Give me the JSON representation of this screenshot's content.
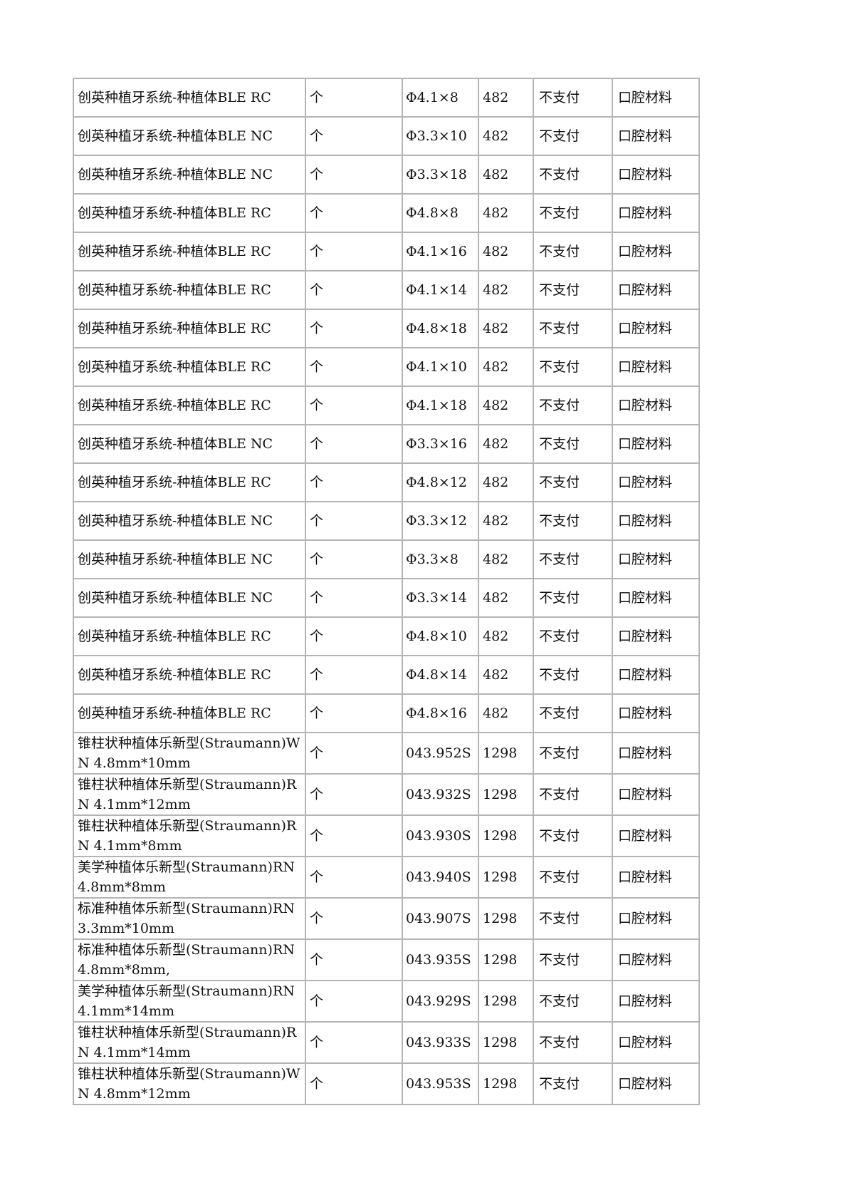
{
  "table": {
    "rows": [
      {
        "name": "创英种植牙系统-种植体BLE RC",
        "unit": "个",
        "spec": "Φ4.1×8",
        "price": "482",
        "payment": "不支付",
        "category": "口腔材料"
      },
      {
        "name": "创英种植牙系统-种植体BLE NC",
        "unit": "个",
        "spec": "Φ3.3×10",
        "price": "482",
        "payment": "不支付",
        "category": "口腔材料"
      },
      {
        "name": "创英种植牙系统-种植体BLE NC",
        "unit": "个",
        "spec": "Φ3.3×18",
        "price": "482",
        "payment": "不支付",
        "category": "口腔材料"
      },
      {
        "name": "创英种植牙系统-种植体BLE RC",
        "unit": "个",
        "spec": "Φ4.8×8",
        "price": "482",
        "payment": "不支付",
        "category": "口腔材料"
      },
      {
        "name": "创英种植牙系统-种植体BLE RC",
        "unit": "个",
        "spec": "Φ4.1×16",
        "price": "482",
        "payment": "不支付",
        "category": "口腔材料"
      },
      {
        "name": "创英种植牙系统-种植体BLE RC",
        "unit": "个",
        "spec": "Φ4.1×14",
        "price": "482",
        "payment": "不支付",
        "category": "口腔材料"
      },
      {
        "name": "创英种植牙系统-种植体BLE RC",
        "unit": "个",
        "spec": "Φ4.8×18",
        "price": "482",
        "payment": "不支付",
        "category": "口腔材料"
      },
      {
        "name": "创英种植牙系统-种植体BLE RC",
        "unit": "个",
        "spec": "Φ4.1×10",
        "price": "482",
        "payment": "不支付",
        "category": "口腔材料"
      },
      {
        "name": "创英种植牙系统-种植体BLE RC",
        "unit": "个",
        "spec": "Φ4.1×18",
        "price": "482",
        "payment": "不支付",
        "category": "口腔材料"
      },
      {
        "name": "创英种植牙系统-种植体BLE NC",
        "unit": "个",
        "spec": "Φ3.3×16",
        "price": "482",
        "payment": "不支付",
        "category": "口腔材料"
      },
      {
        "name": "创英种植牙系统-种植体BLE RC",
        "unit": "个",
        "spec": "Φ4.8×12",
        "price": "482",
        "payment": "不支付",
        "category": "口腔材料"
      },
      {
        "name": "创英种植牙系统-种植体BLE NC",
        "unit": "个",
        "spec": "Φ3.3×12",
        "price": "482",
        "payment": "不支付",
        "category": "口腔材料"
      },
      {
        "name": "创英种植牙系统-种植体BLE NC",
        "unit": "个",
        "spec": "Φ3.3×8",
        "price": "482",
        "payment": "不支付",
        "category": "口腔材料"
      },
      {
        "name": "创英种植牙系统-种植体BLE NC",
        "unit": "个",
        "spec": "Φ3.3×14",
        "price": "482",
        "payment": "不支付",
        "category": "口腔材料"
      },
      {
        "name": "创英种植牙系统-种植体BLE RC",
        "unit": "个",
        "spec": "Φ4.8×10",
        "price": "482",
        "payment": "不支付",
        "category": "口腔材料"
      },
      {
        "name": "创英种植牙系统-种植体BLE RC",
        "unit": "个",
        "spec": "Φ4.8×14",
        "price": "482",
        "payment": "不支付",
        "category": "口腔材料"
      },
      {
        "name": "创英种植牙系统-种植体BLE RC",
        "unit": "个",
        "spec": "Φ4.8×16",
        "price": "482",
        "payment": "不支付",
        "category": "口腔材料"
      },
      {
        "name": "锥柱状种植体乐新型(Straumann)WN 4.8mm*10mm",
        "unit": "个",
        "spec": "043.952S",
        "price": "1298",
        "payment": "不支付",
        "category": "口腔材料"
      },
      {
        "name": "锥柱状种植体乐新型(Straumann)RN 4.1mm*12mm",
        "unit": "个",
        "spec": "043.932S",
        "price": "1298",
        "payment": "不支付",
        "category": "口腔材料"
      },
      {
        "name": "锥柱状种植体乐新型(Straumann)RN 4.1mm*8mm",
        "unit": "个",
        "spec": "043.930S",
        "price": "1298",
        "payment": "不支付",
        "category": "口腔材料"
      },
      {
        "name": "美学种植体乐新型(Straumann)RN 4.8mm*8mm",
        "unit": "个",
        "spec": "043.940S",
        "price": "1298",
        "payment": "不支付",
        "category": "口腔材料"
      },
      {
        "name": "标准种植体乐新型(Straumann)RN 3.3mm*10mm",
        "unit": "个",
        "spec": "043.907S",
        "price": "1298",
        "payment": "不支付",
        "category": "口腔材料"
      },
      {
        "name": "标准种植体乐新型(Straumann)RN 4.8mm*8mm,",
        "unit": "个",
        "spec": "043.935S",
        "price": "1298",
        "payment": "不支付",
        "category": "口腔材料"
      },
      {
        "name": "美学种植体乐新型(Straumann)RN 4.1mm*14mm",
        "unit": "个",
        "spec": "043.929S",
        "price": "1298",
        "payment": "不支付",
        "category": "口腔材料"
      },
      {
        "name": "锥柱状种植体乐新型(Straumann)RN 4.1mm*14mm",
        "unit": "个",
        "spec": "043.933S",
        "price": "1298",
        "payment": "不支付",
        "category": "口腔材料"
      },
      {
        "name": "锥柱状种植体乐新型(Straumann)WN 4.8mm*12mm",
        "unit": "个",
        "spec": "043.953S",
        "price": "1298",
        "payment": "不支付",
        "category": "口腔材料"
      }
    ]
  }
}
